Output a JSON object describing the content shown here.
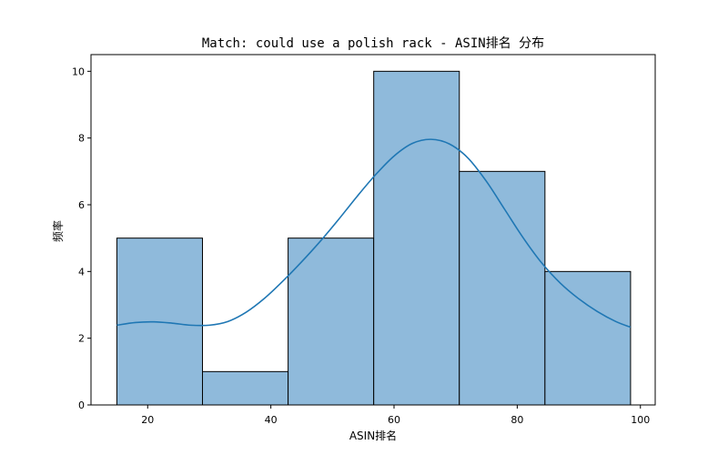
{
  "chart_data": {
    "type": "bar",
    "title": "Match: could use a polish rack - ASIN排名 分布",
    "xlabel": "ASIN排名",
    "ylabel": "频率",
    "xlim": [
      10.8,
      102.4
    ],
    "ylim": [
      0,
      10.5
    ],
    "xticks": [
      20,
      40,
      60,
      80,
      100
    ],
    "yticks": [
      0,
      2,
      4,
      6,
      8,
      10
    ],
    "bins": [
      {
        "start": 15,
        "end": 28.9,
        "count": 5
      },
      {
        "start": 28.9,
        "end": 42.8,
        "count": 1
      },
      {
        "start": 42.8,
        "end": 56.7,
        "count": 5
      },
      {
        "start": 56.7,
        "end": 70.6,
        "count": 10
      },
      {
        "start": 70.6,
        "end": 84.5,
        "count": 7
      },
      {
        "start": 84.5,
        "end": 98.4,
        "count": 4
      }
    ],
    "kde": {
      "x": [
        15,
        18,
        21,
        24,
        27,
        30,
        33,
        36,
        39,
        42,
        45,
        48,
        51,
        54,
        57,
        60,
        63,
        66,
        69,
        72,
        75,
        78,
        81,
        84,
        87,
        90,
        93,
        96,
        98.4
      ],
      "y": [
        2.39,
        2.47,
        2.49,
        2.45,
        2.39,
        2.39,
        2.5,
        2.78,
        3.2,
        3.72,
        4.29,
        4.9,
        5.56,
        6.25,
        6.9,
        7.46,
        7.84,
        7.96,
        7.82,
        7.4,
        6.7,
        5.85,
        5.0,
        4.25,
        3.65,
        3.18,
        2.8,
        2.5,
        2.33
      ]
    },
    "colors": {
      "bar_fill": "#8fbadb",
      "bar_edge": "#000000",
      "kde_line": "#1f77b4"
    },
    "grid": false,
    "legend": "none"
  }
}
